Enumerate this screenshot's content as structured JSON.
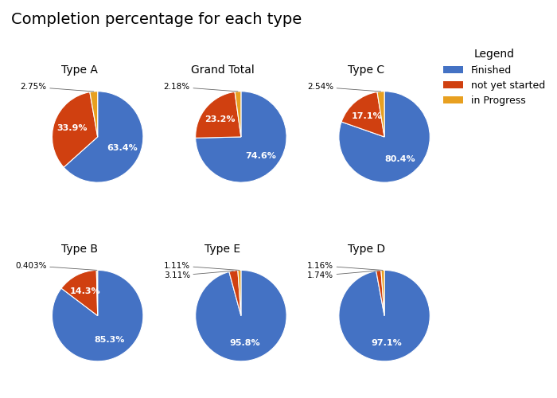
{
  "title": "Completion percentage for each type",
  "legend_title": "Legend",
  "legend": "upper right",
  "chart_data": [
    {
      "type": "pie",
      "title": "Type A",
      "categories": [
        "Finished",
        "not yet started",
        "in Progress"
      ],
      "values": [
        63.4,
        33.9,
        2.75
      ],
      "value_labels": [
        "63.4%",
        "33.9%",
        "2.75%"
      ],
      "colors": [
        "#4472c4",
        "#d04010",
        "#e8a020"
      ],
      "data_labels": true
    },
    {
      "type": "pie",
      "title": "Grand Total",
      "categories": [
        "Finished",
        "not yet started",
        "in Progress"
      ],
      "values": [
        74.6,
        23.2,
        2.18
      ],
      "value_labels": [
        "74.6%",
        "23.2%",
        "2.18%"
      ],
      "colors": [
        "#4472c4",
        "#d04010",
        "#e8a020"
      ],
      "data_labels": true
    },
    {
      "type": "pie",
      "title": "Type C",
      "categories": [
        "Finished",
        "not yet started",
        "in Progress"
      ],
      "values": [
        80.4,
        17.1,
        2.54
      ],
      "value_labels": [
        "80.4%",
        "17.1%",
        "2.54%"
      ],
      "colors": [
        "#4472c4",
        "#d04010",
        "#e8a020"
      ],
      "data_labels": true
    },
    {
      "type": "pie",
      "title": "Type B",
      "categories": [
        "Finished",
        "not yet started",
        "in Progress"
      ],
      "values": [
        85.3,
        14.3,
        0.403
      ],
      "value_labels": [
        "85.3%",
        "14.3%",
        "0.403%"
      ],
      "colors": [
        "#4472c4",
        "#d04010",
        "#e8a020"
      ],
      "data_labels": true
    },
    {
      "type": "pie",
      "title": "Type E",
      "categories": [
        "Finished",
        "not yet started",
        "in Progress"
      ],
      "values": [
        95.8,
        3.11,
        1.11
      ],
      "value_labels": [
        "95.8%",
        "3.11%",
        "1.11%"
      ],
      "colors": [
        "#4472c4",
        "#d04010",
        "#e8a020"
      ],
      "data_labels": true
    },
    {
      "type": "pie",
      "title": "Type D",
      "categories": [
        "Finished",
        "not yet started",
        "in Progress"
      ],
      "values": [
        97.1,
        1.74,
        1.16
      ],
      "value_labels": [
        "97.1%",
        "1.74%",
        "1.16%"
      ],
      "colors": [
        "#4472c4",
        "#d04010",
        "#e8a020"
      ],
      "data_labels": true
    }
  ]
}
